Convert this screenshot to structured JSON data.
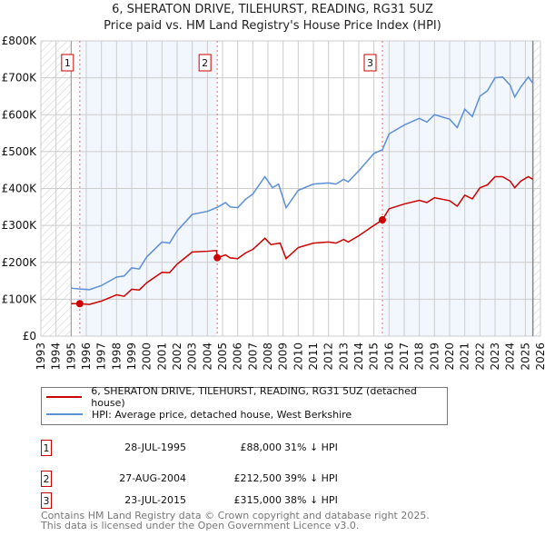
{
  "chart_data": {
    "type": "line",
    "title": "6, SHERATON DRIVE, TILEHURST, READING, RG31 5UZ",
    "subtitle": "Price paid vs. HM Land Registry's House Price Index (HPI)",
    "xlim": [
      1993,
      2026
    ],
    "ylim": [
      0,
      800000
    ],
    "x_ticks": [
      "1993",
      "1994",
      "1995",
      "1996",
      "1997",
      "1998",
      "1999",
      "2000",
      "2001",
      "2002",
      "2003",
      "2004",
      "2005",
      "2006",
      "2007",
      "2008",
      "2009",
      "2010",
      "2011",
      "2012",
      "2013",
      "2014",
      "2015",
      "2016",
      "2017",
      "2018",
      "2019",
      "2020",
      "2021",
      "2022",
      "2023",
      "2024",
      "2025",
      "2026"
    ],
    "y_ticks": [
      {
        "v": 0,
        "label": "£0"
      },
      {
        "v": 100000,
        "label": "£100K"
      },
      {
        "v": 200000,
        "label": "£200K"
      },
      {
        "v": 300000,
        "label": "£300K"
      },
      {
        "v": 400000,
        "label": "£400K"
      },
      {
        "v": 500000,
        "label": "£500K"
      },
      {
        "v": 600000,
        "label": "£600K"
      },
      {
        "v": 700000,
        "label": "£700K"
      },
      {
        "v": 800000,
        "label": "£800K"
      }
    ],
    "grid": true,
    "data_range": [
      1995.0,
      2025.5
    ],
    "series": [
      {
        "name": "6, SHERATON DRIVE, TILEHURST, READING, RG31 5UZ (detached house)",
        "color": "#cc0000",
        "x": [
          1995,
          1995.57,
          1996.2,
          1997,
          1998,
          1998.5,
          1999,
          1999.5,
          2000,
          2001,
          2001.5,
          2002,
          2003,
          2004,
          2004.6,
          2004.65,
          2005.2,
          2005.5,
          2006,
          2006.5,
          2007,
          2007.8,
          2008.2,
          2008.8,
          2009.2,
          2010,
          2011,
          2012,
          2012.5,
          2013,
          2013.3,
          2014,
          2015,
          2015.56,
          2016,
          2017,
          2018,
          2018.5,
          2019,
          2020,
          2020.5,
          2021,
          2021.5,
          2022,
          2022.5,
          2023,
          2023.5,
          2024,
          2024.3,
          2024.7,
          2025.2,
          2025.5
        ],
        "values": [
          88000,
          88000,
          86000,
          95000,
          112000,
          108000,
          127000,
          125000,
          145000,
          173000,
          172000,
          195000,
          228000,
          230000,
          232000,
          212500,
          220000,
          212000,
          210000,
          225000,
          235000,
          265000,
          248000,
          252000,
          210000,
          240000,
          252000,
          255000,
          252000,
          262000,
          255000,
          272000,
          300000,
          315000,
          345000,
          358000,
          368000,
          362000,
          375000,
          367000,
          352000,
          382000,
          372000,
          402000,
          410000,
          432000,
          432000,
          420000,
          402000,
          420000,
          432000,
          425000
        ]
      },
      {
        "name": "HPI: Average price, detached house, West Berkshire",
        "color": "#5b8fd6",
        "x": [
          1995,
          1995.5,
          1996.2,
          1997,
          1998,
          1998.5,
          1999,
          1999.5,
          2000,
          2001,
          2001.5,
          2002,
          2003,
          2004,
          2004.7,
          2005.2,
          2005.5,
          2006,
          2006.5,
          2007,
          2007.8,
          2008.3,
          2008.7,
          2009.2,
          2010,
          2011,
          2012,
          2012.5,
          2013,
          2013.3,
          2014,
          2015,
          2015.56,
          2016,
          2017,
          2018,
          2018.5,
          2019,
          2020,
          2020.5,
          2021,
          2021.5,
          2022,
          2022.5,
          2023,
          2023.5,
          2024,
          2024.3,
          2024.7,
          2025.2,
          2025.5
        ],
        "values": [
          130000,
          128000,
          126000,
          137000,
          160000,
          163000,
          185000,
          182000,
          215000,
          255000,
          252000,
          285000,
          330000,
          338000,
          350000,
          362000,
          350000,
          348000,
          370000,
          385000,
          432000,
          402000,
          412000,
          348000,
          395000,
          412000,
          415000,
          412000,
          425000,
          418000,
          448000,
          495000,
          505000,
          548000,
          572000,
          590000,
          580000,
          600000,
          588000,
          565000,
          615000,
          595000,
          650000,
          665000,
          700000,
          702000,
          680000,
          648000,
          675000,
          702000,
          685000
        ]
      }
    ],
    "sales": [
      {
        "label": "1",
        "x": 1995.57,
        "value": 88000,
        "date": "28-JUL-1995",
        "price": "£88,000",
        "hpi": "31% ↓ HPI"
      },
      {
        "label": "2",
        "x": 2004.65,
        "value": 212500,
        "date": "27-AUG-2004",
        "price": "£212,500",
        "hpi": "39% ↓ HPI"
      },
      {
        "label": "3",
        "x": 2015.56,
        "value": 315000,
        "date": "23-JUL-2015",
        "price": "£315,000",
        "hpi": "38% ↓ HPI"
      }
    ]
  },
  "footer": {
    "line1": "Contains HM Land Registry data © Crown copyright and database right 2025.",
    "line2": "This data is licensed under the Open Government Licence v3.0."
  }
}
